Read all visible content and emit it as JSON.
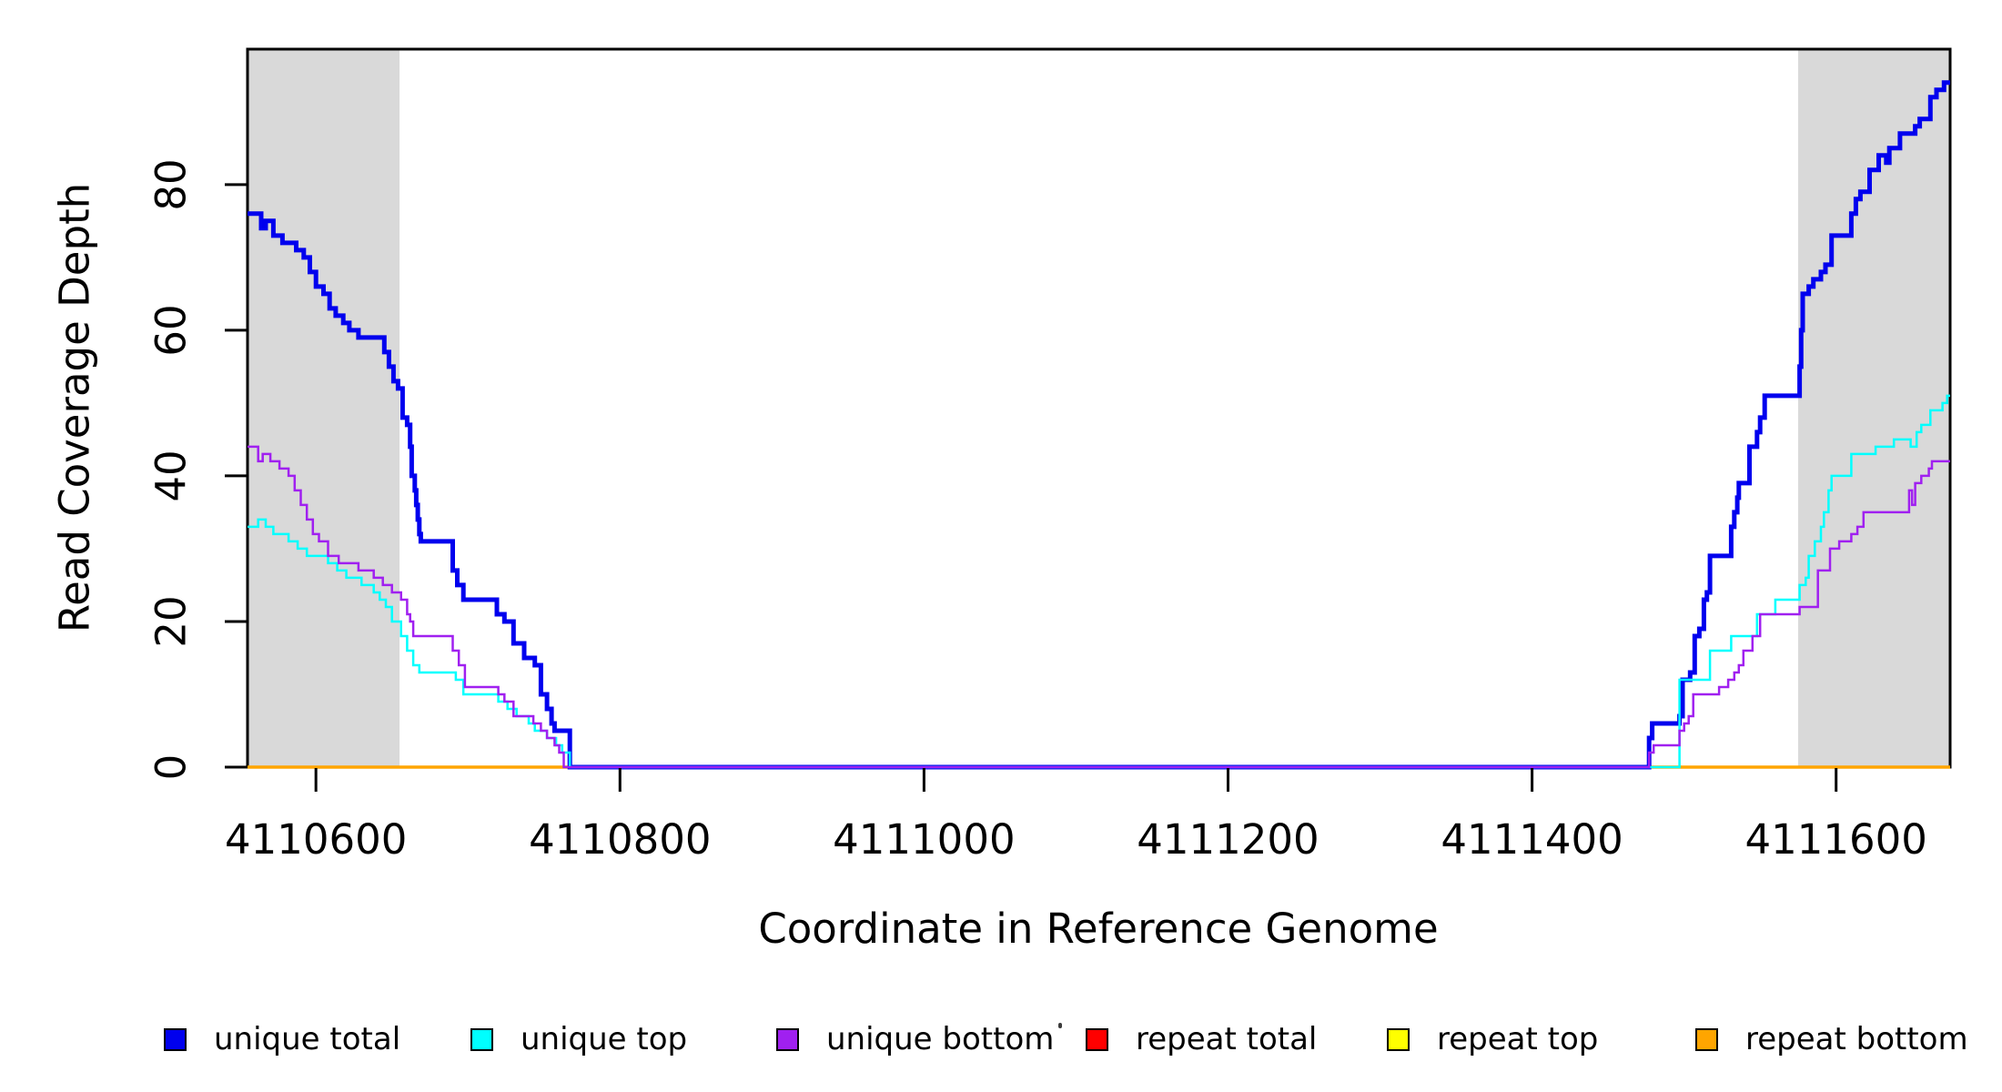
{
  "figure": {
    "background": "#ffffff",
    "plot_border_color": "#000000",
    "shade_color": "#d9d9d9"
  },
  "chart_data": {
    "type": "line",
    "subtype": "step",
    "title": "",
    "xlabel": "Coordinate in Reference Genome",
    "ylabel": "Read Coverage Depth",
    "xlim": [
      4110555,
      4111675
    ],
    "ylim": [
      0,
      98.6
    ],
    "xticks": [
      4110600,
      4110800,
      4111000,
      4111200,
      4111400,
      4111600
    ],
    "yticks": [
      0,
      20,
      40,
      60,
      80
    ],
    "grid": false,
    "legend_position": "bottom",
    "shaded_regions": [
      {
        "name": "left-flank",
        "x0": 4110555,
        "x1": 4110655,
        "color": "#d9d9d9"
      },
      {
        "name": "right-flank",
        "x0": 4111575,
        "x1": 4111675,
        "color": "#d9d9d9"
      }
    ],
    "draw_order": [
      "repeat total",
      "repeat top",
      "repeat bottom",
      "unique total",
      "unique top",
      "unique bottom"
    ],
    "series": [
      {
        "name": "unique total",
        "color": "#0000ee",
        "line_width": 5,
        "points": [
          [
            4110555,
            76
          ],
          [
            4110564,
            74
          ],
          [
            4110567,
            75
          ],
          [
            4110572,
            73
          ],
          [
            4110578,
            72
          ],
          [
            4110587,
            71
          ],
          [
            4110592,
            70
          ],
          [
            4110596,
            68
          ],
          [
            4110600,
            66
          ],
          [
            4110605,
            65
          ],
          [
            4110609,
            63
          ],
          [
            4110613,
            62
          ],
          [
            4110618,
            61
          ],
          [
            4110622,
            60
          ],
          [
            4110628,
            59
          ],
          [
            4110645,
            57
          ],
          [
            4110648,
            55
          ],
          [
            4110651,
            53
          ],
          [
            4110654,
            52
          ],
          [
            4110657,
            48
          ],
          [
            4110660,
            47
          ],
          [
            4110662,
            44
          ],
          [
            4110663,
            40
          ],
          [
            4110665,
            38
          ],
          [
            4110666,
            36
          ],
          [
            4110667,
            34
          ],
          [
            4110668,
            32
          ],
          [
            4110669,
            31
          ],
          [
            4110690,
            27
          ],
          [
            4110693,
            25
          ],
          [
            4110697,
            23
          ],
          [
            4110719,
            21
          ],
          [
            4110724,
            20
          ],
          [
            4110730,
            17
          ],
          [
            4110737,
            15
          ],
          [
            4110744,
            14
          ],
          [
            4110748,
            10
          ],
          [
            4110752,
            8
          ],
          [
            4110755,
            6
          ],
          [
            4110757,
            5
          ],
          [
            4110767,
            0
          ],
          [
            4111477,
            4
          ],
          [
            4111479,
            6
          ],
          [
            4111497,
            7
          ],
          [
            4111499,
            12
          ],
          [
            4111504,
            13
          ],
          [
            4111507,
            18
          ],
          [
            4111510,
            19
          ],
          [
            4111513,
            23
          ],
          [
            4111515,
            24
          ],
          [
            4111517,
            29
          ],
          [
            4111531,
            33
          ],
          [
            4111533,
            35
          ],
          [
            4111535,
            37
          ],
          [
            4111536,
            39
          ],
          [
            4111543,
            44
          ],
          [
            4111548,
            46
          ],
          [
            4111550,
            48
          ],
          [
            4111553,
            51
          ],
          [
            4111576,
            55
          ],
          [
            4111577,
            60
          ],
          [
            4111578,
            65
          ],
          [
            4111582,
            66
          ],
          [
            4111585,
            67
          ],
          [
            4111590,
            68
          ],
          [
            4111593,
            69
          ],
          [
            4111597,
            73
          ],
          [
            4111610,
            76
          ],
          [
            4111613,
            78
          ],
          [
            4111616,
            79
          ],
          [
            4111622,
            82
          ],
          [
            4111628,
            84
          ],
          [
            4111633,
            83
          ],
          [
            4111635,
            85
          ],
          [
            4111642,
            87
          ],
          [
            4111652,
            88
          ],
          [
            4111655,
            89
          ],
          [
            4111662,
            92
          ],
          [
            4111666,
            93
          ],
          [
            4111671,
            94
          ]
        ]
      },
      {
        "name": "unique top",
        "color": "#00ffff",
        "line_width": 2.5,
        "points": [
          [
            4110555,
            33
          ],
          [
            4110562,
            34
          ],
          [
            4110567,
            33
          ],
          [
            4110572,
            32
          ],
          [
            4110582,
            31
          ],
          [
            4110588,
            30
          ],
          [
            4110594,
            29
          ],
          [
            4110608,
            28
          ],
          [
            4110614,
            27
          ],
          [
            4110620,
            26
          ],
          [
            4110630,
            25
          ],
          [
            4110638,
            24
          ],
          [
            4110642,
            23
          ],
          [
            4110646,
            22
          ],
          [
            4110650,
            20
          ],
          [
            4110656,
            18
          ],
          [
            4110660,
            16
          ],
          [
            4110664,
            14
          ],
          [
            4110668,
            13
          ],
          [
            4110692,
            12
          ],
          [
            4110697,
            10
          ],
          [
            4110720,
            9
          ],
          [
            4110726,
            8
          ],
          [
            4110732,
            7
          ],
          [
            4110740,
            6
          ],
          [
            4110744,
            5
          ],
          [
            4110752,
            4
          ],
          [
            4110758,
            3
          ],
          [
            4110762,
            2
          ],
          [
            4110767,
            0
          ],
          [
            4111497,
            12
          ],
          [
            4111517,
            16
          ],
          [
            4111531,
            18
          ],
          [
            4111548,
            21
          ],
          [
            4111560,
            23
          ],
          [
            4111576,
            25
          ],
          [
            4111580,
            26
          ],
          [
            4111582,
            29
          ],
          [
            4111586,
            31
          ],
          [
            4111590,
            33
          ],
          [
            4111592,
            35
          ],
          [
            4111595,
            38
          ],
          [
            4111597,
            40
          ],
          [
            4111610,
            43
          ],
          [
            4111626,
            44
          ],
          [
            4111638,
            45
          ],
          [
            4111649,
            44
          ],
          [
            4111653,
            46
          ],
          [
            4111656,
            47
          ],
          [
            4111662,
            49
          ],
          [
            4111670,
            50
          ],
          [
            4111673,
            51
          ]
        ]
      },
      {
        "name": "unique bottom",
        "color": "#a020f0",
        "line_width": 2.5,
        "points": [
          [
            4110555,
            44
          ],
          [
            4110562,
            42
          ],
          [
            4110565,
            43
          ],
          [
            4110570,
            42
          ],
          [
            4110576,
            41
          ],
          [
            4110582,
            40
          ],
          [
            4110586,
            38
          ],
          [
            4110590,
            36
          ],
          [
            4110594,
            34
          ],
          [
            4110598,
            32
          ],
          [
            4110602,
            31
          ],
          [
            4110608,
            29
          ],
          [
            4110615,
            28
          ],
          [
            4110628,
            27
          ],
          [
            4110638,
            26
          ],
          [
            4110644,
            25
          ],
          [
            4110650,
            24
          ],
          [
            4110656,
            23
          ],
          [
            4110660,
            21
          ],
          [
            4110662,
            20
          ],
          [
            4110664,
            18
          ],
          [
            4110690,
            16
          ],
          [
            4110694,
            14
          ],
          [
            4110698,
            11
          ],
          [
            4110720,
            10
          ],
          [
            4110724,
            9
          ],
          [
            4110730,
            7
          ],
          [
            4110743,
            6
          ],
          [
            4110748,
            5
          ],
          [
            4110752,
            4
          ],
          [
            4110757,
            3
          ],
          [
            4110760,
            2
          ],
          [
            4110763,
            0
          ],
          [
            4111477,
            2
          ],
          [
            4111480,
            3
          ],
          [
            4111497,
            5
          ],
          [
            4111500,
            6
          ],
          [
            4111503,
            7
          ],
          [
            4111506,
            10
          ],
          [
            4111523,
            11
          ],
          [
            4111529,
            12
          ],
          [
            4111533,
            13
          ],
          [
            4111536,
            14
          ],
          [
            4111539,
            16
          ],
          [
            4111545,
            18
          ],
          [
            4111550,
            21
          ],
          [
            4111576,
            22
          ],
          [
            4111588,
            27
          ],
          [
            4111596,
            30
          ],
          [
            4111602,
            31
          ],
          [
            4111610,
            32
          ],
          [
            4111614,
            33
          ],
          [
            4111618,
            35
          ],
          [
            4111648,
            38
          ],
          [
            4111650,
            36
          ],
          [
            4111652,
            39
          ],
          [
            4111656,
            40
          ],
          [
            4111661,
            41
          ],
          [
            4111663,
            42
          ]
        ]
      },
      {
        "name": "repeat total",
        "color": "#ff0000",
        "line_width": 2.5,
        "points": [
          [
            4110555,
            0
          ]
        ]
      },
      {
        "name": "repeat top",
        "color": "#ffff00",
        "line_width": 2.5,
        "points": [
          [
            4110555,
            0
          ]
        ]
      },
      {
        "name": "repeat bottom",
        "color": "#ffa500",
        "line_width": 3.5,
        "points": [
          [
            4110555,
            0
          ]
        ]
      }
    ]
  },
  "legend": {
    "items": [
      {
        "label": "unique total",
        "color": "#0000ee"
      },
      {
        "label": "unique top",
        "color": "#00ffff"
      },
      {
        "label": "unique bottom",
        "color": "#a020f0"
      },
      {
        "label": "repeat total",
        "color": "#ff0000"
      },
      {
        "label": "repeat top",
        "color": "#ffff00"
      },
      {
        "label": "repeat bottom",
        "color": "#ffa500"
      }
    ]
  }
}
